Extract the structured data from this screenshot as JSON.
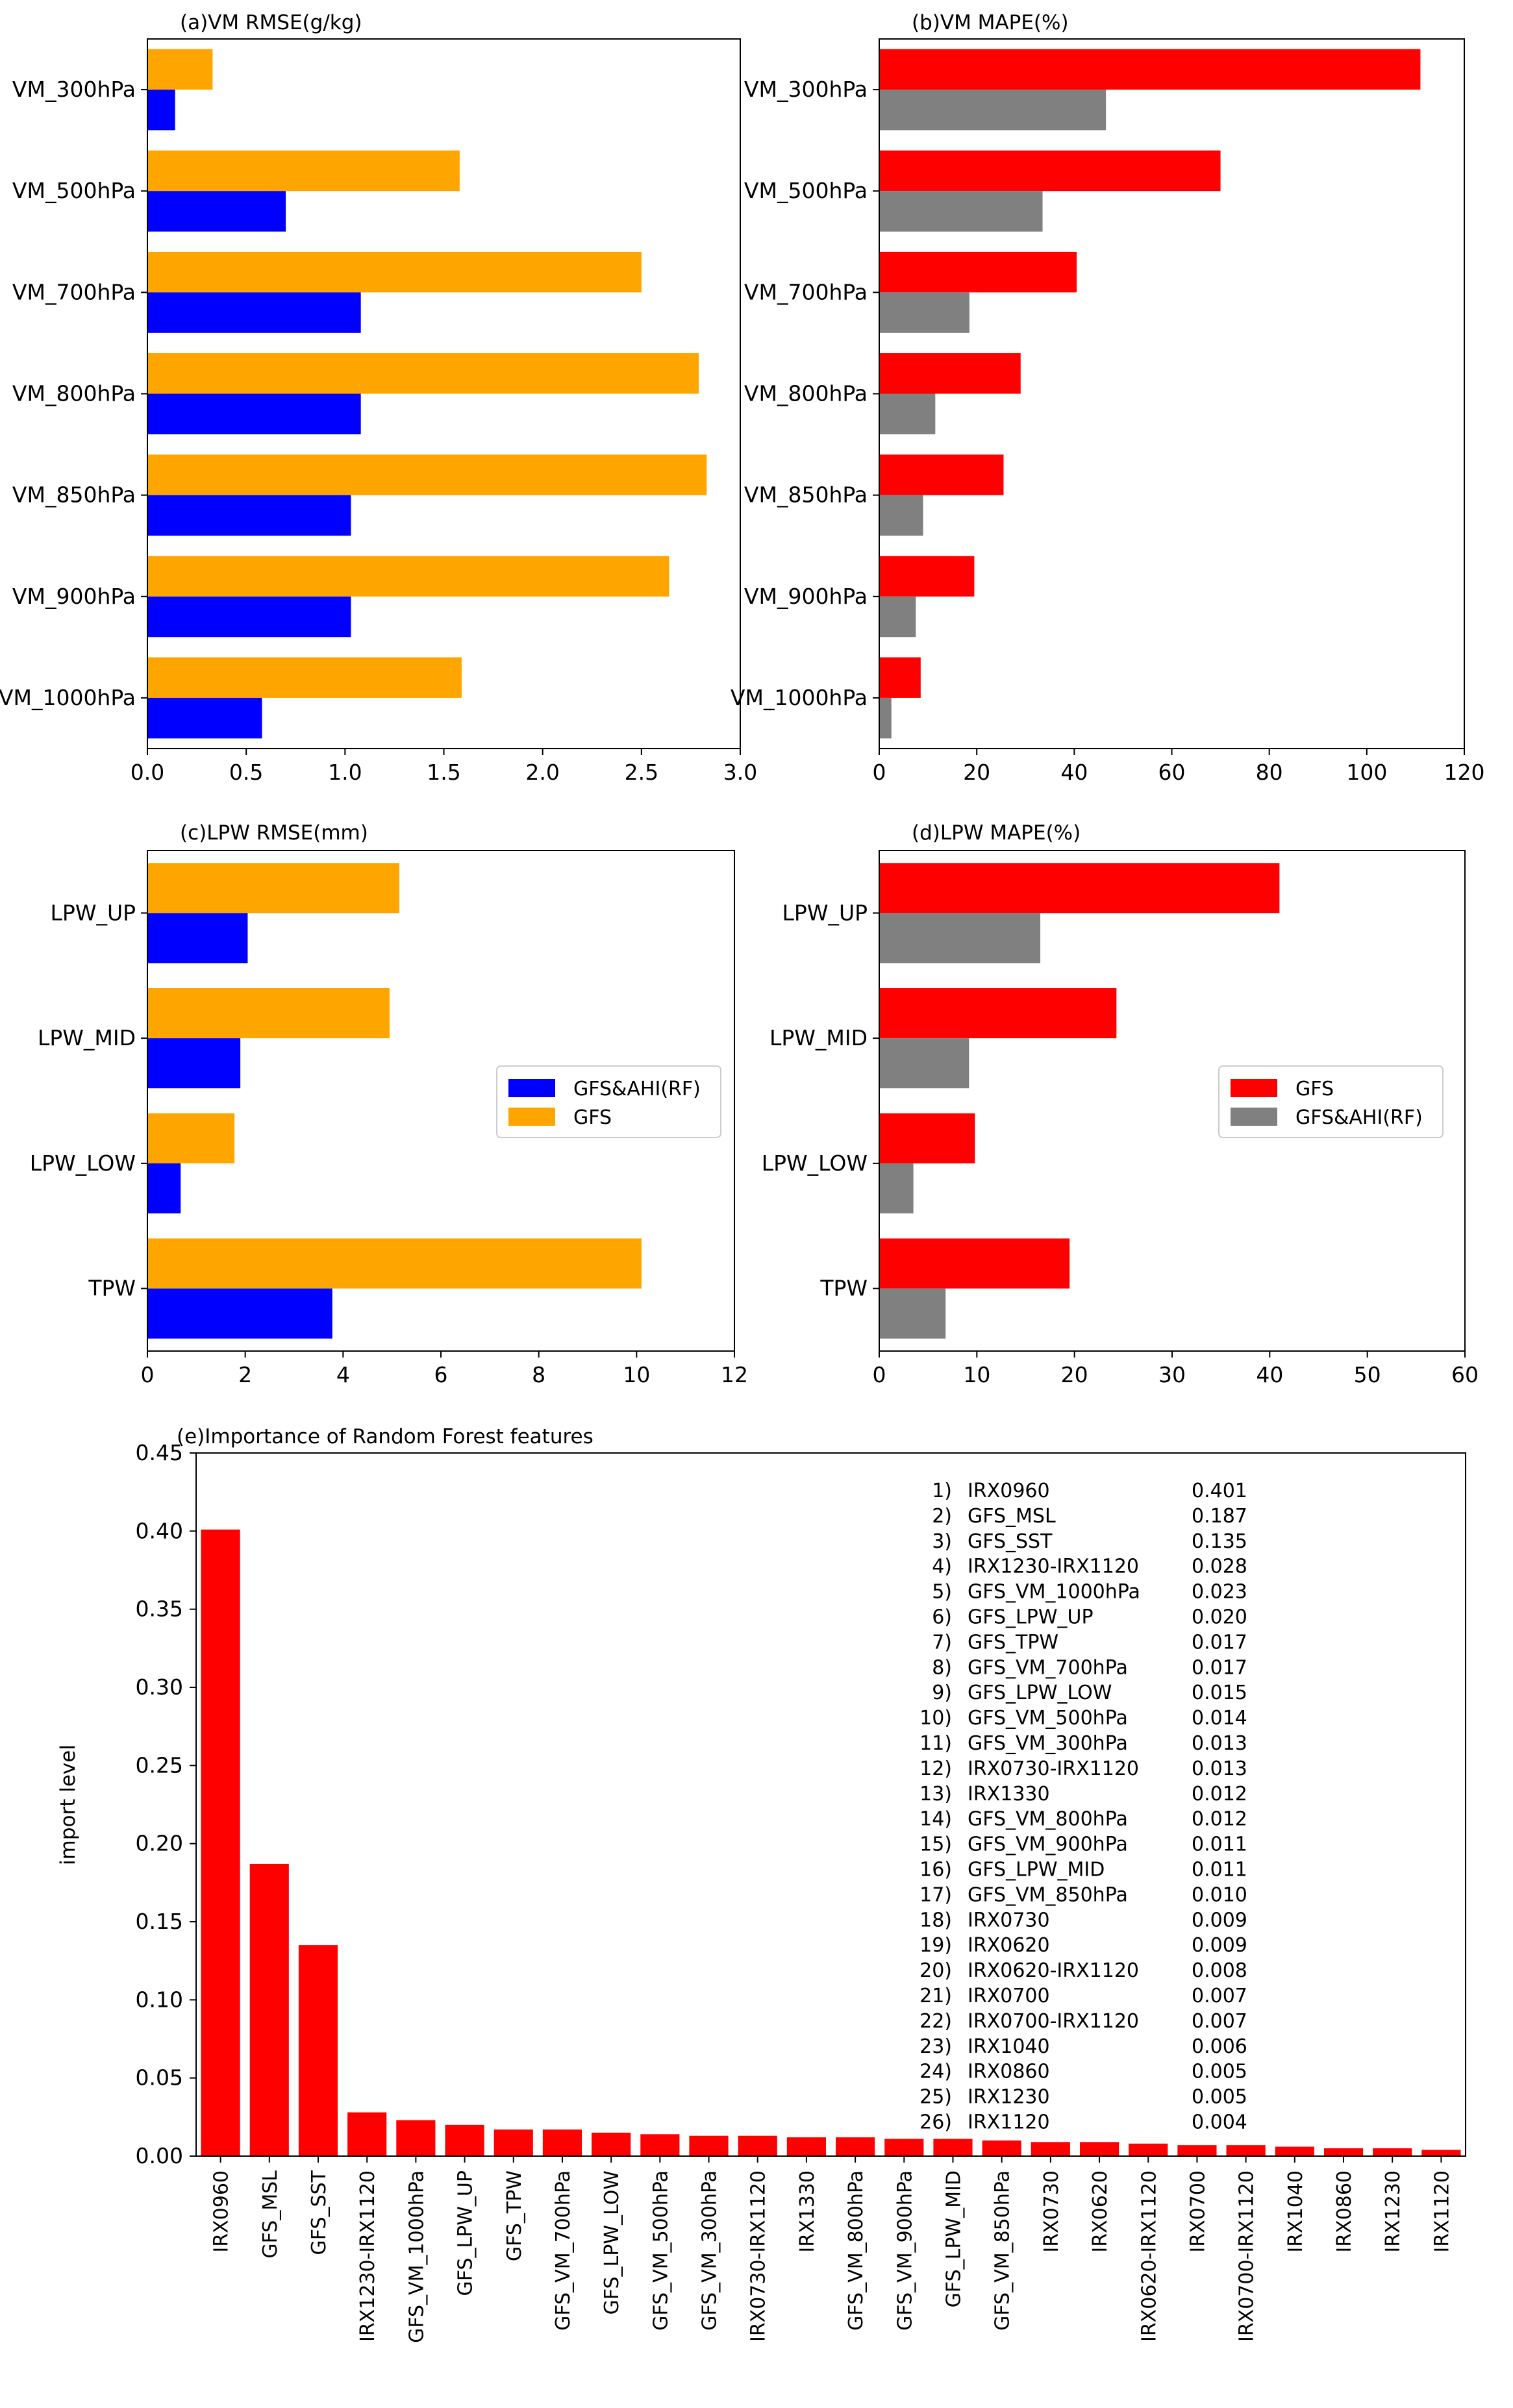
{
  "colors": {
    "gfs_ahi": "#0000ff",
    "gfs": "#ffa500",
    "gfs_mape": "#ff0000",
    "gfs_ahi_mape": "#808080",
    "importance": "#ff0000"
  },
  "chart_data": [
    {
      "id": "a",
      "type": "bar",
      "orientation": "horizontal",
      "title": "(a)VM RMSE(g/kg)",
      "categories": [
        "VM_300hPa",
        "VM_500hPa",
        "VM_700hPa",
        "VM_800hPa",
        "VM_850hPa",
        "VM_900hPa",
        "VM_1000hPa"
      ],
      "series": [
        {
          "name": "GFS",
          "color": "#ffa500",
          "values": [
            0.33,
            1.58,
            2.5,
            2.79,
            2.83,
            2.64,
            1.59
          ]
        },
        {
          "name": "GFS&AHI(RF)",
          "color": "#0000ff",
          "values": [
            0.14,
            0.7,
            1.08,
            1.08,
            1.03,
            1.03,
            0.58
          ]
        }
      ],
      "xlim": [
        0,
        3.0
      ],
      "xticks": [
        0,
        0.5,
        1.0,
        1.5,
        2.0,
        2.5,
        3.0
      ],
      "xtick_labels": [
        "0.0",
        "0.5",
        "1.0",
        "1.5",
        "2.0",
        "2.5",
        "3.0"
      ]
    },
    {
      "id": "b",
      "type": "bar",
      "orientation": "horizontal",
      "title": "(b)VM MAPE(%)",
      "categories": [
        "VM_300hPa",
        "VM_500hPa",
        "VM_700hPa",
        "VM_800hPa",
        "VM_850hPa",
        "VM_900hPa",
        "VM_1000hPa"
      ],
      "series": [
        {
          "name": "GFS",
          "color": "#ff0000",
          "values": [
            111,
            70,
            40.5,
            29,
            25.5,
            19.5,
            8.5
          ]
        },
        {
          "name": "GFS&AHI(RF)",
          "color": "#808080",
          "values": [
            46.5,
            33.5,
            18.5,
            11.5,
            9,
            7.5,
            2.5
          ]
        }
      ],
      "xlim": [
        0,
        120
      ],
      "xticks": [
        0,
        20,
        40,
        60,
        80,
        100,
        120
      ],
      "xtick_labels": [
        "0",
        "20",
        "40",
        "60",
        "80",
        "100",
        "120"
      ]
    },
    {
      "id": "c",
      "type": "bar",
      "orientation": "horizontal",
      "title": "(c)LPW RMSE(mm)",
      "categories": [
        "LPW_UP",
        "LPW_MID",
        "LPW_LOW",
        "TPW"
      ],
      "series": [
        {
          "name": "GFS",
          "color": "#ffa500",
          "values": [
            5.15,
            4.95,
            1.78,
            10.1
          ]
        },
        {
          "name": "GFS&AHI(RF)",
          "color": "#0000ff",
          "values": [
            2.05,
            1.9,
            0.68,
            3.78
          ]
        }
      ],
      "xlim": [
        0,
        12
      ],
      "xticks": [
        0,
        2,
        4,
        6,
        8,
        10,
        12
      ],
      "xtick_labels": [
        "0",
        "2",
        "4",
        "6",
        "8",
        "10",
        "12"
      ],
      "legend": {
        "position": "center-right",
        "entries": [
          "GFS&AHI(RF)",
          "GFS"
        ],
        "colors": [
          "#0000ff",
          "#ffa500"
        ]
      }
    },
    {
      "id": "d",
      "type": "bar",
      "orientation": "horizontal",
      "title": "(d)LPW MAPE(%)",
      "categories": [
        "LPW_UP",
        "LPW_MID",
        "LPW_LOW",
        "TPW"
      ],
      "series": [
        {
          "name": "GFS",
          "color": "#ff0000",
          "values": [
            41,
            24.3,
            9.8,
            19.5
          ]
        },
        {
          "name": "GFS&AHI(RF)",
          "color": "#808080",
          "values": [
            16.5,
            9.2,
            3.5,
            6.8
          ]
        }
      ],
      "xlim": [
        0,
        60
      ],
      "xticks": [
        0,
        10,
        20,
        30,
        40,
        50,
        60
      ],
      "xtick_labels": [
        "0",
        "10",
        "20",
        "30",
        "40",
        "50",
        "60"
      ],
      "legend": {
        "position": "center-right",
        "entries": [
          "GFS",
          "GFS&AHI(RF)"
        ],
        "colors": [
          "#ff0000",
          "#808080"
        ]
      }
    },
    {
      "id": "e",
      "type": "bar",
      "orientation": "vertical",
      "title": "(e)Importance of Random Forest features",
      "ylabel": "import level",
      "ylim": [
        0,
        0.45
      ],
      "yticks": [
        0,
        0.05,
        0.1,
        0.15,
        0.2,
        0.25,
        0.3,
        0.35,
        0.4,
        0.45
      ],
      "ytick_labels": [
        "0.00",
        "0.05",
        "0.10",
        "0.15",
        "0.20",
        "0.25",
        "0.30",
        "0.35",
        "0.40",
        "0.45"
      ],
      "color": "#ff0000",
      "categories": [
        "IRX0960",
        "GFS_MSL",
        "GFS_SST",
        "IRX1230-IRX1120",
        "GFS_VM_1000hPa",
        "GFS_LPW_UP",
        "GFS_TPW",
        "GFS_VM_700hPa",
        "GFS_LPW_LOW",
        "GFS_VM_500hPa",
        "GFS_VM_300hPa",
        "IRX0730-IRX1120",
        "IRX1330",
        "GFS_VM_800hPa",
        "GFS_VM_900hPa",
        "GFS_LPW_MID",
        "GFS_VM_850hPa",
        "IRX0730",
        "IRX0620",
        "IRX0620-IRX1120",
        "IRX0700",
        "IRX0700-IRX1120",
        "IRX1040",
        "IRX0860",
        "IRX1230",
        "IRX1120"
      ],
      "values": [
        0.401,
        0.187,
        0.135,
        0.028,
        0.023,
        0.02,
        0.017,
        0.017,
        0.015,
        0.014,
        0.013,
        0.013,
        0.012,
        0.012,
        0.011,
        0.011,
        0.01,
        0.009,
        0.009,
        0.008,
        0.007,
        0.007,
        0.006,
        0.005,
        0.005,
        0.004
      ],
      "table": {
        "ranks": [
          "1)",
          "2)",
          "3)",
          "4)",
          "5)",
          "6)",
          "7)",
          "8)",
          "9)",
          "10)",
          "11)",
          "12)",
          "13)",
          "14)",
          "15)",
          "16)",
          "17)",
          "18)",
          "19)",
          "20)",
          "21)",
          "22)",
          "23)",
          "24)",
          "25)",
          "26)"
        ],
        "values_text": [
          "0.401",
          "0.187",
          "0.135",
          "0.028",
          "0.023",
          "0.020",
          "0.017",
          "0.017",
          "0.015",
          "0.014",
          "0.013",
          "0.013",
          "0.012",
          "0.012",
          "0.011",
          "0.011",
          "0.010",
          "0.009",
          "0.009",
          "0.008",
          "0.007",
          "0.007",
          "0.006",
          "0.005",
          "0.005",
          "0.004"
        ]
      }
    }
  ]
}
